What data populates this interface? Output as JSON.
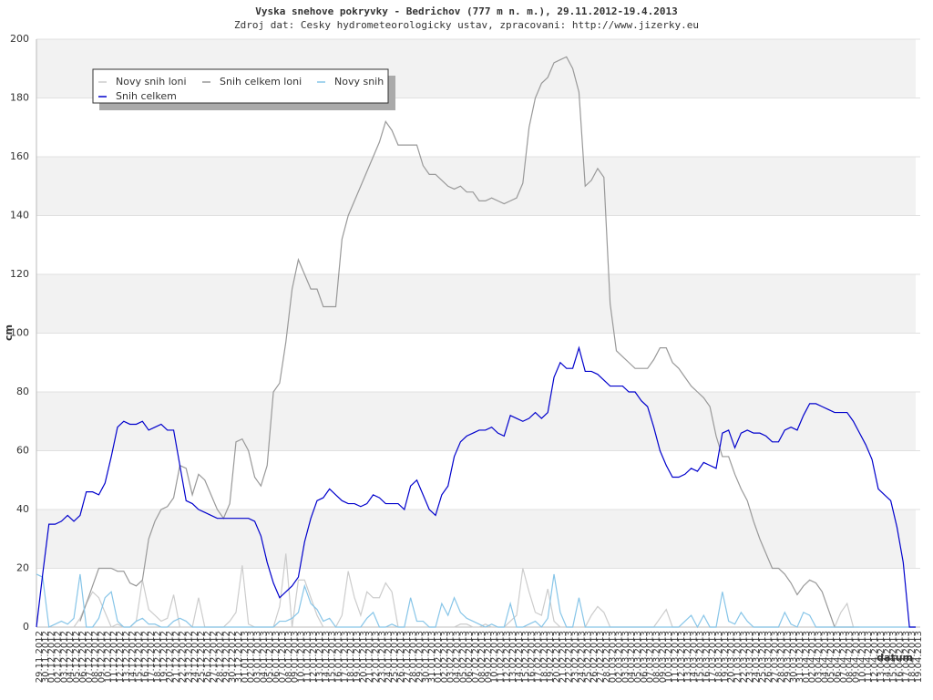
{
  "chart_data": {
    "type": "line",
    "title": "Vyska snehove pokryvky - Bedrichov (777 m n. m.), 29.11.2012-19.4.2013",
    "subtitle": "Zdroj dat: Cesky hydrometeorologicky ustav, zpracovani: http://www.jizerky.eu",
    "ylabel": "cm",
    "xlabel": "datum",
    "ylim": [
      0,
      200
    ],
    "yticks": [
      0,
      20,
      40,
      60,
      80,
      100,
      120,
      140,
      160,
      180,
      200
    ],
    "grid": true,
    "legend": "top-left",
    "categories": [
      "29.11.2012",
      "30.11.2012",
      "01.12.2012",
      "02.12.2012",
      "03.12.2012",
      "04.12.2012",
      "05.12.2012",
      "06.12.2012",
      "07.12.2012",
      "08.12.2012",
      "09.12.2012",
      "10.12.2012",
      "11.12.2012",
      "12.12.2012",
      "13.12.2012",
      "14.12.2012",
      "15.12.2012",
      "16.12.2012",
      "17.12.2012",
      "18.12.2012",
      "19.12.2012",
      "20.12.2012",
      "21.12.2012",
      "22.12.2012",
      "23.12.2012",
      "24.12.2012",
      "25.12.2012",
      "26.12.2012",
      "27.12.2012",
      "28.12.2012",
      "29.12.2012",
      "30.12.2012",
      "31.12.2012",
      "01.01.2013",
      "02.01.2013",
      "03.01.2013",
      "04.01.2013",
      "05.01.2013",
      "06.01.2013",
      "07.01.2013",
      "08.01.2013",
      "09.01.2013",
      "10.01.2013",
      "11.01.2013",
      "12.01.2013",
      "13.01.2013",
      "14.01.2013",
      "15.01.2013",
      "16.01.2013",
      "17.01.2013",
      "18.01.2013",
      "19.01.2013",
      "20.01.2013",
      "21.01.2013",
      "22.01.2013",
      "23.01.2013",
      "24.01.2013",
      "25.01.2013",
      "26.01.2013",
      "27.01.2013",
      "28.01.2013",
      "29.01.2013",
      "30.01.2013",
      "31.01.2013",
      "01.02.2013",
      "02.02.2013",
      "03.02.2013",
      "04.02.2013",
      "05.02.2013",
      "06.02.2013",
      "07.02.2013",
      "08.02.2013",
      "09.02.2013",
      "10.02.2013",
      "11.02.2013",
      "12.02.2013",
      "13.02.2013",
      "14.02.2013",
      "15.02.2013",
      "16.02.2013",
      "17.02.2013",
      "18.02.2013",
      "19.02.2013",
      "20.02.2013",
      "21.02.2013",
      "22.02.2013",
      "23.02.2013",
      "24.02.2013",
      "25.02.2013",
      "26.02.2013",
      "27.02.2013",
      "28.02.2013",
      "01.03.2013",
      "02.03.2013",
      "03.03.2013",
      "04.03.2013",
      "05.03.2013",
      "06.03.2013",
      "07.03.2013",
      "08.03.2013",
      "09.03.2013",
      "10.03.2013",
      "11.03.2013",
      "12.03.2013",
      "13.03.2013",
      "14.03.2013",
      "15.03.2013",
      "16.03.2013",
      "17.03.2013",
      "18.03.2013",
      "19.03.2013",
      "20.03.2013",
      "21.03.2013",
      "22.03.2013",
      "23.03.2013",
      "24.03.2013",
      "25.03.2013",
      "26.03.2013",
      "27.03.2013",
      "28.03.2013",
      "29.03.2013",
      "30.03.2013",
      "31.03.2013",
      "01.04.2013",
      "02.04.2013",
      "03.04.2013",
      "04.04.2013",
      "05.04.2013",
      "06.04.2013",
      "07.04.2013",
      "08.04.2013",
      "09.04.2013",
      "10.04.2013",
      "11.04.2013",
      "12.04.2013",
      "13.04.2013",
      "14.04.2013",
      "15.04.2013",
      "16.04.2013",
      "17.04.2013",
      "18.04.2013",
      "19.04.2013"
    ],
    "series": [
      {
        "name": "Novy snih loni",
        "color": "#cccccc",
        "values": [
          null,
          null,
          null,
          null,
          null,
          null,
          0,
          3,
          8,
          12,
          10,
          5,
          0,
          1,
          0,
          0,
          2,
          16,
          6,
          4,
          2,
          3,
          11,
          0,
          0,
          0,
          10,
          0,
          0,
          0,
          0,
          2,
          5,
          21,
          1,
          0,
          0,
          0,
          0,
          7,
          25,
          0,
          16,
          16,
          10,
          4,
          0,
          0,
          0,
          4,
          19,
          10,
          4,
          12,
          10,
          10,
          15,
          12,
          0,
          0,
          0,
          0,
          0,
          0,
          0,
          0,
          0,
          0,
          1,
          1,
          0,
          0,
          1,
          0,
          0,
          0,
          2,
          4,
          20,
          12,
          5,
          4,
          13,
          2,
          0,
          0,
          0,
          0,
          0,
          4,
          7,
          5,
          0,
          0,
          0,
          0,
          0,
          0,
          0,
          0,
          3,
          6,
          0,
          0,
          0,
          0,
          0,
          0,
          0,
          0,
          0,
          0,
          0,
          0,
          0,
          0,
          0,
          0,
          0,
          0,
          0,
          0,
          0,
          0,
          0,
          0,
          0,
          0,
          0,
          5,
          8,
          0,
          0,
          null,
          null,
          null,
          null,
          null,
          null,
          null,
          null,
          null
        ]
      },
      {
        "name": "Snih celkem loni",
        "color": "#999999",
        "values": [
          null,
          null,
          null,
          null,
          null,
          null,
          null,
          2,
          8,
          14,
          20,
          20,
          20,
          19,
          19,
          15,
          14,
          16,
          30,
          36,
          40,
          41,
          44,
          55,
          54,
          45,
          52,
          50,
          45,
          40,
          37,
          42,
          63,
          64,
          60,
          51,
          48,
          55,
          80,
          83,
          97,
          115,
          125,
          120,
          115,
          115,
          109,
          109,
          109,
          132,
          140,
          145,
          150,
          155,
          160,
          165,
          172,
          169,
          164,
          164,
          164,
          164,
          157,
          154,
          154,
          152,
          150,
          149,
          150,
          148,
          148,
          145,
          145,
          146,
          145,
          144,
          145,
          146,
          151,
          170,
          180,
          185,
          187,
          192,
          193,
          194,
          190,
          182,
          150,
          152,
          156,
          153,
          110,
          94,
          92,
          90,
          88,
          88,
          88,
          91,
          95,
          95,
          90,
          88,
          85,
          82,
          80,
          78,
          75,
          65,
          58,
          58,
          52,
          47,
          43,
          36,
          30,
          25,
          20,
          20,
          18,
          15,
          11,
          14,
          16,
          15,
          12,
          6,
          0,
          0,
          0,
          0,
          null,
          null,
          null,
          null,
          null,
          null,
          null,
          null,
          null,
          null
        ]
      },
      {
        "name": "Novy snih",
        "color": "#87c5e8",
        "values": [
          18,
          17,
          0,
          1,
          2,
          1,
          3,
          18,
          0,
          0,
          3,
          10,
          12,
          2,
          0,
          0,
          2,
          3,
          1,
          1,
          0,
          0,
          2,
          3,
          2,
          0,
          0,
          0,
          0,
          0,
          0,
          0,
          0,
          0,
          0,
          0,
          0,
          0,
          0,
          2,
          2,
          3,
          5,
          14,
          8,
          6,
          2,
          3,
          0,
          0,
          0,
          0,
          0,
          3,
          5,
          0,
          0,
          1,
          0,
          0,
          10,
          2,
          2,
          0,
          0,
          8,
          4,
          10,
          5,
          3,
          2,
          1,
          0,
          1,
          0,
          0,
          8,
          0,
          0,
          1,
          2,
          0,
          3,
          18,
          5,
          0,
          0,
          10,
          0,
          0,
          0,
          0,
          0,
          0,
          0,
          0,
          0,
          0,
          0,
          0,
          0,
          0,
          0,
          0,
          2,
          4,
          0,
          4,
          0,
          0,
          12,
          2,
          1,
          5,
          2,
          0,
          0,
          0,
          0,
          0,
          5,
          1,
          0,
          5,
          4,
          0,
          0,
          0,
          0,
          0,
          0,
          0,
          0,
          0,
          0,
          0,
          0,
          0,
          0,
          0,
          0,
          0
        ]
      },
      {
        "name": "Snih celkem",
        "color": "#0000cc",
        "values": [
          0,
          18,
          35,
          35,
          36,
          38,
          36,
          38,
          46,
          46,
          45,
          49,
          58,
          68,
          70,
          69,
          69,
          70,
          67,
          68,
          69,
          67,
          67,
          55,
          43,
          42,
          40,
          39,
          38,
          37,
          37,
          37,
          37,
          37,
          37,
          36,
          31,
          22,
          15,
          10,
          12,
          14,
          17,
          29,
          37,
          43,
          44,
          47,
          45,
          43,
          42,
          42,
          41,
          42,
          45,
          44,
          42,
          42,
          42,
          40,
          48,
          50,
          45,
          40,
          38,
          45,
          48,
          58,
          63,
          65,
          66,
          67,
          67,
          68,
          66,
          65,
          72,
          71,
          70,
          71,
          73,
          71,
          73,
          85,
          90,
          88,
          88,
          95,
          87,
          87,
          86,
          84,
          82,
          82,
          82,
          80,
          80,
          77,
          75,
          68,
          60,
          55,
          51,
          51,
          52,
          54,
          53,
          56,
          55,
          54,
          66,
          67,
          61,
          66,
          67,
          66,
          66,
          65,
          63,
          63,
          67,
          68,
          67,
          72,
          76,
          76,
          75,
          74,
          73,
          73,
          73,
          70,
          66,
          62,
          57,
          47,
          45,
          43,
          34,
          22,
          0,
          0
        ]
      }
    ]
  }
}
